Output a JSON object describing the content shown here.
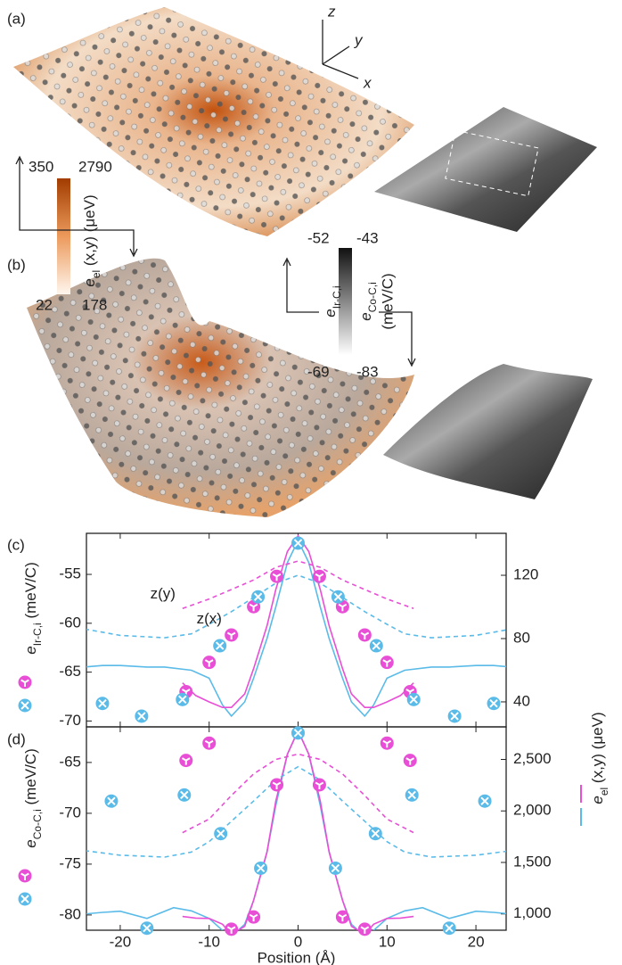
{
  "labels": [
    "(a)",
    "(b)",
    "(c)",
    "(d)"
  ],
  "triad": [
    "z",
    "y",
    "x"
  ],
  "colorbar_el": {
    "top": [
      350,
      2790
    ],
    "bottom": [
      22,
      178
    ],
    "label": {
      "main": "e",
      "sub": "el",
      "rest": " (x,y) (μeV)"
    }
  },
  "colorbar_e": {
    "top": [
      -52,
      -43
    ],
    "bottom": [
      -69,
      -83
    ],
    "label_ir": {
      "main": "e",
      "sub": "Ir-C,i"
    },
    "label_co": {
      "main": "e",
      "sub": "Co-C,i"
    },
    "unit": "(meV/C)"
  },
  "chart_data": [
    {
      "type": "line",
      "xlim": [
        -23.8,
        23.4
      ],
      "ylim": [
        -70.6,
        -50.8
      ],
      "yticks": [
        -70,
        -65,
        -60,
        -55
      ],
      "y2lim": [
        24.2,
        146.5
      ],
      "y2ticks": [
        40,
        80,
        120
      ],
      "y_label": {
        "main": "e",
        "sub": "Ir-C,i",
        "rest": " (meV/C)"
      },
      "series": [
        {
          "type": "line",
          "axis": "y2",
          "color": "#5bbbe8",
          "dashed": false,
          "x": [
            -24,
            -22,
            -20,
            -17,
            -15,
            -12,
            -10,
            -8.5,
            -7.5,
            -6,
            -5,
            -3.5,
            -2.5,
            -1.2,
            0,
            1.2,
            2.5,
            3.5,
            5,
            6,
            7.5,
            8.5,
            10,
            12,
            15,
            17,
            20,
            22,
            24
          ],
          "values": [
            62,
            63,
            63,
            62,
            62,
            60,
            55,
            38,
            31,
            40,
            55,
            80,
            100,
            128,
            142,
            128,
            100,
            80,
            55,
            40,
            31,
            38,
            55,
            60,
            62,
            62,
            63,
            63,
            62
          ]
        },
        {
          "type": "line",
          "axis": "y2",
          "color": "#e84fd6",
          "dashed": false,
          "x": [
            -13,
            -11.5,
            -10,
            -8.5,
            -7.5,
            -6,
            -5,
            -3.5,
            -2.5,
            -1.2,
            0,
            1.2,
            2.5,
            3.5,
            5,
            6,
            7.5,
            8.5,
            10,
            11.5,
            13
          ],
          "values": [
            52,
            44,
            40,
            36.5,
            36.5,
            45,
            61,
            88,
            111,
            135,
            145,
            135,
            111,
            88,
            61,
            45,
            36.5,
            36.5,
            40,
            44,
            52
          ]
        },
        {
          "type": "line",
          "axis": "y2",
          "name": "z(x)",
          "color": "#5bbbe8",
          "dashed": true,
          "x": [
            -24,
            -20,
            -15,
            -12,
            -10,
            -7.5,
            -5,
            -2.5,
            0,
            2.5,
            5,
            7.5,
            10,
            12,
            15,
            20,
            24
          ],
          "values": [
            86,
            82,
            80.5,
            83,
            89,
            97,
            106,
            115,
            120,
            115,
            106,
            97,
            89,
            83,
            80.5,
            82,
            86
          ]
        },
        {
          "type": "line",
          "axis": "y2",
          "name": "z(y)",
          "color": "#e84fd6",
          "dashed": true,
          "x": [
            -13,
            -10,
            -7.5,
            -5,
            -2.5,
            0,
            2.5,
            5,
            7.5,
            10,
            13
          ],
          "values": [
            99,
            105,
            111,
            117,
            125,
            129,
            125,
            117,
            111,
            105,
            99
          ]
        },
        {
          "type": "scatter",
          "marker": "Y",
          "color": "#e84fd6",
          "x": [
            -12.6,
            -10,
            -7.5,
            -5,
            -2.4,
            2.4,
            5,
            7.5,
            10,
            12.6
          ],
          "values": [
            -67,
            -64,
            -61.2,
            -58.3,
            -55.2,
            -55.2,
            -58.3,
            -61.2,
            -64,
            -67
          ]
        },
        {
          "type": "scatter",
          "marker": "x",
          "color": "#5bbbe8",
          "x": [
            -22,
            -17.6,
            -13,
            -8.8,
            -4.5,
            0,
            4.5,
            8.8,
            13,
            17.6,
            22
          ],
          "values": [
            -68.2,
            -69.5,
            -67.8,
            -62.3,
            -57.3,
            -51.8,
            -57.3,
            -62.3,
            -67.8,
            -69.5,
            -68.2
          ]
        }
      ]
    },
    {
      "type": "line",
      "xlim": [
        -23.8,
        23.4
      ],
      "xticks": [
        -20,
        -10,
        0,
        10,
        20
      ],
      "x_label": "Position (Å)",
      "ylim": [
        -81.5,
        -61.5
      ],
      "yticks": [
        -80,
        -75,
        -70,
        -65
      ],
      "y2lim": [
        842,
        2816
      ],
      "y2ticks": [
        {
          "value": 1000,
          "label": "1,000"
        },
        {
          "value": 1500,
          "label": "1,500"
        },
        {
          "value": 2000,
          "label": "2,000"
        },
        {
          "value": 2500,
          "label": "2,500"
        }
      ],
      "y_label": {
        "main": "e",
        "sub": "Co-C,i",
        "rest": " (meV/C)"
      },
      "y2_label": {
        "main": "e",
        "sub": "el",
        "rest": " (x,y) (μeV)"
      },
      "series": [
        {
          "type": "line",
          "axis": "y2",
          "color": "#5bbbe8",
          "dashed": false,
          "x": [
            -24,
            -22,
            -20,
            -17,
            -14,
            -12,
            -10,
            -8.5,
            -7.5,
            -6,
            -5,
            -3.5,
            -2.5,
            -1.2,
            0,
            1.2,
            2.5,
            3.5,
            5,
            6,
            7.5,
            8.5,
            10,
            12,
            14,
            17,
            20,
            22,
            24
          ],
          "values": [
            1000,
            1015,
            1026,
            956,
            1061,
            1030,
            956,
            840,
            781,
            900,
            1132,
            1600,
            2052,
            2550,
            2780,
            2550,
            2052,
            1600,
            1132,
            900,
            781,
            840,
            956,
            1030,
            1061,
            956,
            1026,
            1015,
            1000
          ]
        },
        {
          "type": "line",
          "axis": "y2",
          "color": "#e84fd6",
          "dashed": false,
          "x": [
            -13,
            -11.5,
            -10,
            -8.5,
            -7.5,
            -6,
            -5,
            -3.5,
            -2.5,
            -1.2,
            0,
            1.2,
            2.5,
            3.5,
            5,
            6,
            7.5,
            8.5,
            10,
            11.5,
            13
          ],
          "values": [
            975,
            960,
            956,
            900,
            800,
            880,
            1132,
            1600,
            2096,
            2550,
            2780,
            2550,
            2096,
            1600,
            1132,
            880,
            800,
            900,
            956,
            960,
            975
          ]
        },
        {
          "type": "line",
          "axis": "y2",
          "color": "#5bbbe8",
          "dashed": true,
          "x": [
            -24,
            -20,
            -15,
            -12,
            -10,
            -7.5,
            -5,
            -2.5,
            0,
            2.5,
            5,
            7.5,
            10,
            12,
            15,
            20,
            24
          ],
          "values": [
            1614,
            1570,
            1552,
            1600,
            1702,
            1900,
            2096,
            2300,
            2429,
            2300,
            2096,
            1900,
            1702,
            1600,
            1552,
            1570,
            1614
          ]
        },
        {
          "type": "line",
          "axis": "y2",
          "color": "#e84fd6",
          "dashed": true,
          "x": [
            -13,
            -10,
            -7.5,
            -5,
            -2.5,
            0,
            2.5,
            5,
            7.5,
            10,
            13
          ],
          "values": [
            1789,
            1921,
            2150,
            2359,
            2500,
            2552,
            2500,
            2359,
            2150,
            1921,
            1789
          ]
        },
        {
          "type": "scatter",
          "marker": "Y",
          "color": "#e84fd6",
          "x": [
            -12.6,
            -10,
            -7.5,
            -5,
            -2.4,
            2.4,
            5,
            7.5,
            10,
            12.6
          ],
          "values": [
            -64.8,
            -63.1,
            -81.4,
            -80.2,
            -67.2,
            -67.2,
            -80.2,
            -81.4,
            -63.1,
            -64.8
          ]
        },
        {
          "type": "scatter",
          "marker": "x",
          "color": "#5bbbe8",
          "x": [
            -21,
            -17,
            -12.8,
            -8.7,
            -4.2,
            0,
            4.2,
            8.7,
            12.8,
            17,
            21
          ],
          "values": [
            -68.8,
            -81.3,
            -68.2,
            -72,
            -75.4,
            -62.1,
            -75.4,
            -72,
            -68.2,
            -81.3,
            -68.8
          ]
        }
      ]
    }
  ]
}
